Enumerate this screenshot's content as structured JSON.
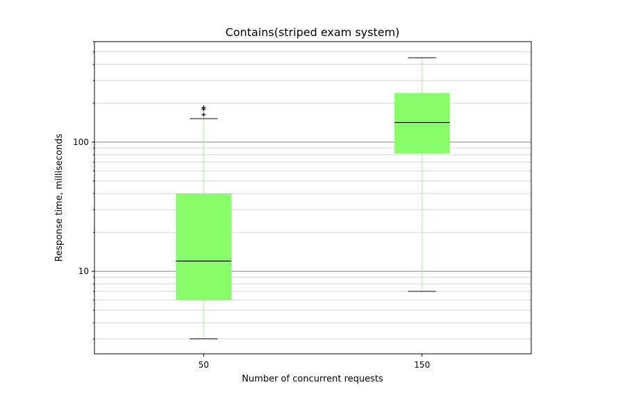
{
  "chart_data": {
    "type": "box",
    "title": "Contains(striped exam system)",
    "xlabel": "Number of concurrent requests",
    "ylabel": "Response time, milliseconds",
    "yscale": "log",
    "ylim": [
      2.3,
      600
    ],
    "grid": {
      "major": true,
      "minor": true
    },
    "categories": [
      "50",
      "150"
    ],
    "y_major_ticks": [
      {
        "value": 10,
        "label": "10"
      },
      {
        "value": 100,
        "label": "100"
      }
    ],
    "boxes": [
      {
        "category": "50",
        "whisker_low": 3.0,
        "q1": 6.0,
        "median": 12.0,
        "q3": 40.0,
        "whisker_high": 152,
        "fliers": [
          163,
          180,
          185
        ]
      },
      {
        "category": "150",
        "whisker_low": 7.0,
        "q1": 82,
        "median": 142,
        "q3": 240,
        "whisker_high": 450,
        "fliers": []
      }
    ],
    "colors": {
      "box_fill": "#88ff6a",
      "whisker": "#88ff6a",
      "median": "#000000",
      "caps": "#000000",
      "major_grid": "#808080",
      "minor_grid": "#d3d3d3"
    }
  }
}
